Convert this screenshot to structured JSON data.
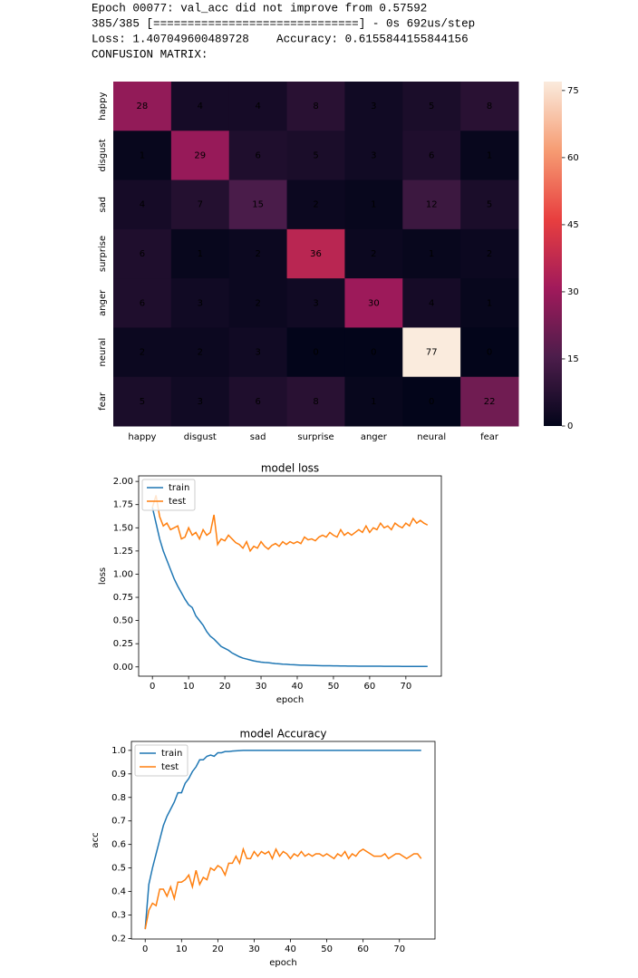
{
  "console": [
    "Epoch 00077: val_acc did not improve from 0.57592",
    "385/385 [==============================] - 0s 692us/step",
    "Loss: 1.407049600489728    Accuracy: 0.6155844155844156",
    "CONFUSION MATRIX:"
  ],
  "chart_data": [
    {
      "type": "heatmap",
      "x_categories": [
        "happy",
        "disgust",
        "sad",
        "surprise",
        "anger",
        "neural",
        "fear"
      ],
      "y_categories": [
        "happy",
        "disgust",
        "sad",
        "surprise",
        "anger",
        "neural",
        "fear"
      ],
      "values": [
        [
          28,
          4,
          4,
          8,
          3,
          5,
          8
        ],
        [
          1,
          29,
          6,
          5,
          3,
          6,
          1
        ],
        [
          4,
          7,
          15,
          2,
          1,
          12,
          5
        ],
        [
          6,
          1,
          2,
          36,
          2,
          1,
          2
        ],
        [
          6,
          3,
          2,
          3,
          30,
          4,
          1
        ],
        [
          2,
          2,
          3,
          0,
          0,
          77,
          0
        ],
        [
          5,
          3,
          6,
          8,
          1,
          0,
          22
        ]
      ],
      "colorbar_lim": [
        0,
        77
      ],
      "colorbar_ticks": [
        0,
        15,
        30,
        45,
        60,
        75
      ],
      "colormap": [
        "#03051a",
        "#4c1d4b",
        "#a11a5b",
        "#e83f3f",
        "#f69c73",
        "#faebdd"
      ]
    },
    {
      "type": "line",
      "title": "model loss",
      "xlabel": "epoch",
      "ylabel": "loss",
      "x": [
        0,
        1,
        2,
        3,
        4,
        5,
        6,
        7,
        8,
        9,
        10,
        11,
        12,
        13,
        14,
        15,
        16,
        17,
        18,
        19,
        20,
        21,
        22,
        23,
        24,
        25,
        26,
        27,
        28,
        29,
        30,
        31,
        32,
        33,
        34,
        35,
        36,
        37,
        38,
        39,
        40,
        41,
        42,
        43,
        44,
        45,
        46,
        47,
        48,
        49,
        50,
        51,
        52,
        53,
        54,
        55,
        56,
        57,
        58,
        59,
        60,
        61,
        62,
        63,
        64,
        65,
        66,
        67,
        68,
        69,
        70,
        71,
        72,
        73,
        74,
        75,
        76
      ],
      "series": [
        {
          "name": "train",
          "color": "#1f77b4",
          "values": [
            1.72,
            1.55,
            1.38,
            1.25,
            1.15,
            1.05,
            0.95,
            0.87,
            0.8,
            0.73,
            0.67,
            0.64,
            0.55,
            0.5,
            0.45,
            0.38,
            0.33,
            0.3,
            0.26,
            0.22,
            0.2,
            0.18,
            0.15,
            0.13,
            0.11,
            0.095,
            0.085,
            0.075,
            0.065,
            0.058,
            0.052,
            0.048,
            0.045,
            0.04,
            0.036,
            0.033,
            0.03,
            0.028,
            0.025,
            0.023,
            0.021,
            0.019,
            0.018,
            0.017,
            0.016,
            0.015,
            0.014,
            0.013,
            0.012,
            0.012,
            0.011,
            0.011,
            0.01,
            0.01,
            0.009,
            0.009,
            0.009,
            0.008,
            0.008,
            0.008,
            0.007,
            0.007,
            0.007,
            0.007,
            0.006,
            0.006,
            0.006,
            0.006,
            0.006,
            0.005,
            0.005,
            0.005,
            0.005,
            0.005,
            0.005,
            0.005,
            0.005
          ]
        },
        {
          "name": "test",
          "color": "#ff7f0e",
          "values": [
            1.72,
            1.85,
            1.62,
            1.52,
            1.55,
            1.48,
            1.5,
            1.52,
            1.38,
            1.4,
            1.5,
            1.42,
            1.45,
            1.38,
            1.48,
            1.42,
            1.45,
            1.64,
            1.32,
            1.38,
            1.36,
            1.42,
            1.38,
            1.34,
            1.32,
            1.28,
            1.35,
            1.25,
            1.3,
            1.28,
            1.35,
            1.3,
            1.27,
            1.31,
            1.33,
            1.3,
            1.35,
            1.32,
            1.35,
            1.33,
            1.35,
            1.33,
            1.4,
            1.37,
            1.38,
            1.36,
            1.4,
            1.42,
            1.4,
            1.45,
            1.42,
            1.4,
            1.48,
            1.42,
            1.45,
            1.42,
            1.45,
            1.48,
            1.45,
            1.52,
            1.45,
            1.5,
            1.48,
            1.55,
            1.5,
            1.52,
            1.48,
            1.55,
            1.52,
            1.5,
            1.55,
            1.52,
            1.6,
            1.55,
            1.58,
            1.55,
            1.53
          ]
        }
      ],
      "xlim": [
        -3.8,
        79.8
      ],
      "xticks": [
        0,
        10,
        20,
        30,
        40,
        50,
        60,
        70
      ],
      "ylim": [
        -0.1,
        2.06
      ],
      "yticks": [
        {
          "value": 0,
          "label": "0.00"
        },
        {
          "value": 0.25,
          "label": "0.25"
        },
        {
          "value": 0.5,
          "label": "0.50"
        },
        {
          "value": 0.75,
          "label": "0.75"
        },
        {
          "value": 1,
          "label": "1.00"
        },
        {
          "value": 1.25,
          "label": "1.25"
        },
        {
          "value": 1.5,
          "label": "1.50"
        },
        {
          "value": 1.75,
          "label": "1.75"
        },
        {
          "value": 2,
          "label": "2.00"
        }
      ],
      "legend": "upper left"
    },
    {
      "type": "line",
      "title": "model Accuracy",
      "xlabel": "epoch",
      "ylabel": "acc",
      "x": [
        0,
        1,
        2,
        3,
        4,
        5,
        6,
        7,
        8,
        9,
        10,
        11,
        12,
        13,
        14,
        15,
        16,
        17,
        18,
        19,
        20,
        21,
        22,
        23,
        24,
        25,
        26,
        27,
        28,
        29,
        30,
        31,
        32,
        33,
        34,
        35,
        36,
        37,
        38,
        39,
        40,
        41,
        42,
        43,
        44,
        45,
        46,
        47,
        48,
        49,
        50,
        51,
        52,
        53,
        54,
        55,
        56,
        57,
        58,
        59,
        60,
        61,
        62,
        63,
        64,
        65,
        66,
        67,
        68,
        69,
        70,
        71,
        72,
        73,
        74,
        75,
        76
      ],
      "series": [
        {
          "name": "train",
          "color": "#1f77b4",
          "values": [
            0.24,
            0.43,
            0.5,
            0.56,
            0.62,
            0.68,
            0.72,
            0.75,
            0.78,
            0.82,
            0.82,
            0.86,
            0.88,
            0.91,
            0.93,
            0.96,
            0.96,
            0.975,
            0.98,
            0.975,
            0.99,
            0.99,
            0.995,
            0.995,
            0.997,
            0.998,
            0.999,
            1,
            1,
            1,
            1,
            1,
            1,
            1,
            1,
            1,
            1,
            1,
            1,
            1,
            1,
            1,
            1,
            1,
            1,
            1,
            1,
            1,
            1,
            1,
            1,
            1,
            1,
            1,
            1,
            1,
            1,
            1,
            1,
            1,
            1,
            1,
            1,
            1,
            1,
            1,
            1,
            1,
            1,
            1,
            1,
            1,
            1,
            1,
            1,
            1,
            1
          ]
        },
        {
          "name": "test",
          "color": "#ff7f0e",
          "values": [
            0.24,
            0.32,
            0.35,
            0.34,
            0.41,
            0.41,
            0.38,
            0.42,
            0.37,
            0.44,
            0.44,
            0.45,
            0.47,
            0.42,
            0.49,
            0.43,
            0.46,
            0.45,
            0.5,
            0.49,
            0.51,
            0.5,
            0.47,
            0.52,
            0.52,
            0.55,
            0.52,
            0.58,
            0.54,
            0.54,
            0.57,
            0.55,
            0.57,
            0.56,
            0.57,
            0.54,
            0.58,
            0.55,
            0.57,
            0.56,
            0.54,
            0.56,
            0.55,
            0.57,
            0.55,
            0.56,
            0.55,
            0.56,
            0.56,
            0.55,
            0.56,
            0.55,
            0.54,
            0.56,
            0.55,
            0.57,
            0.54,
            0.56,
            0.55,
            0.57,
            0.58,
            0.57,
            0.56,
            0.55,
            0.55,
            0.55,
            0.56,
            0.54,
            0.55,
            0.56,
            0.56,
            0.55,
            0.54,
            0.55,
            0.56,
            0.56,
            0.54
          ]
        }
      ],
      "xlim": [
        -3.8,
        79.8
      ],
      "xticks": [
        0,
        10,
        20,
        30,
        40,
        50,
        60,
        70
      ],
      "ylim": [
        0.198,
        1.038
      ],
      "yticks": [
        0.2,
        0.3,
        0.4,
        0.5,
        0.6,
        0.7,
        0.8,
        0.9,
        {
          "value": 1,
          "label": "1.0"
        }
      ],
      "legend": "upper left"
    }
  ]
}
